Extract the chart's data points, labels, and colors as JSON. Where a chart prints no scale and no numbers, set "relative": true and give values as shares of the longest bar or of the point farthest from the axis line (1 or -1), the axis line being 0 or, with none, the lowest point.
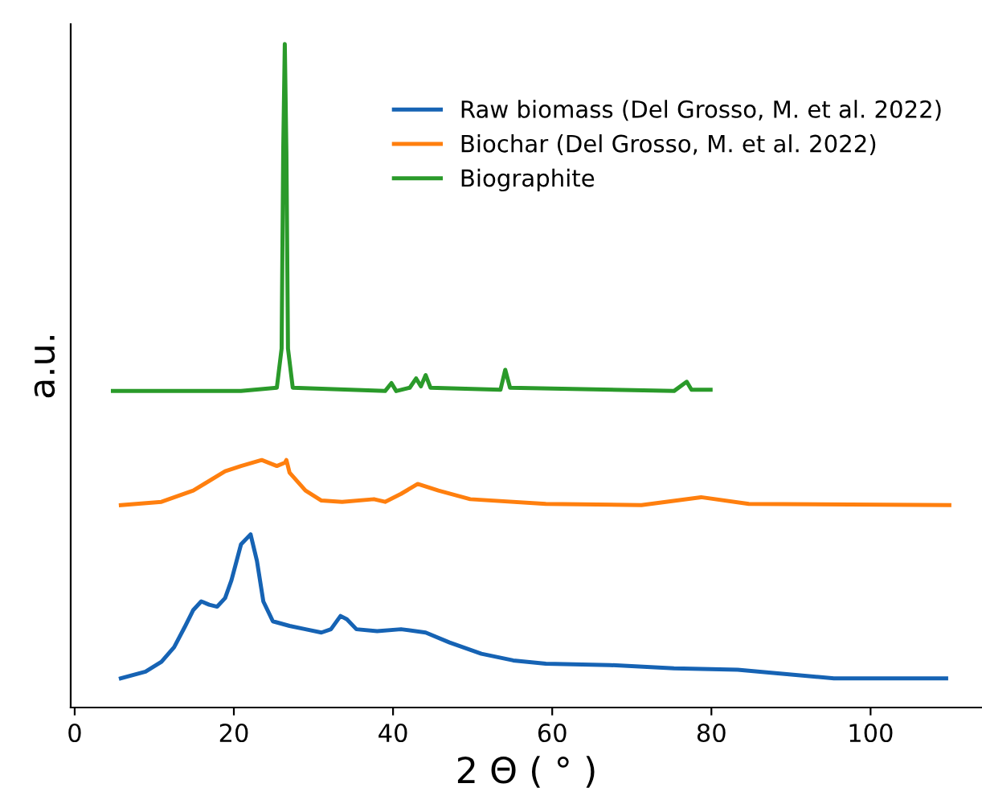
{
  "chart_data": {
    "type": "line",
    "relative": true,
    "xlabel": "2 Θ ( ° )",
    "ylabel": "a.u.",
    "xlim": [
      -0.5,
      114
    ],
    "xticks": [
      0,
      20,
      40,
      60,
      80,
      100
    ],
    "legend": "top right",
    "grid": false,
    "tick_labels": "x",
    "series": [
      {
        "name": "Raw biomass (Del Grosso, M. et al. 2022)",
        "color": "#1663b4",
        "x": [
          5.8,
          8.9,
          10.9,
          12.5,
          13.9,
          14.9,
          15.9,
          16.9,
          17.9,
          18.9,
          19.7,
          20.9,
          22.1,
          22.9,
          23.7,
          24.9,
          27.0,
          29.0,
          31.0,
          32.2,
          33.4,
          34.2,
          35.4,
          38.0,
          41.0,
          44.1,
          47.1,
          51.1,
          55.1,
          59.2,
          67.2,
          75.3,
          83.3,
          95.4,
          109.5
        ],
        "values": [
          0.044,
          0.054,
          0.069,
          0.091,
          0.123,
          0.147,
          0.16,
          0.155,
          0.152,
          0.165,
          0.192,
          0.246,
          0.261,
          0.221,
          0.16,
          0.13,
          0.123,
          0.118,
          0.113,
          0.118,
          0.138,
          0.133,
          0.118,
          0.115,
          0.118,
          0.113,
          0.098,
          0.081,
          0.071,
          0.066,
          0.064,
          0.059,
          0.057,
          0.044,
          0.044
        ]
      },
      {
        "name": "Biochar (Del Grosso, M. et al. 2022)",
        "color": "#ff7f0e",
        "x": [
          5.8,
          10.9,
          14.9,
          18.9,
          20.9,
          23.5,
          25.4,
          26.4,
          26.6,
          27.0,
          29.0,
          31.0,
          33.6,
          37.6,
          39.0,
          41.0,
          43.1,
          45.7,
          49.7,
          59.2,
          71.2,
          78.7,
          84.7,
          109.9
        ],
        "values": [
          0.305,
          0.31,
          0.327,
          0.356,
          0.364,
          0.373,
          0.364,
          0.369,
          0.373,
          0.354,
          0.327,
          0.312,
          0.31,
          0.314,
          0.31,
          0.322,
          0.337,
          0.327,
          0.314,
          0.307,
          0.305,
          0.317,
          0.307,
          0.305
        ]
      },
      {
        "name": "Biographite",
        "color": "#2a9a2a",
        "x": [
          4.8,
          20.9,
          25.4,
          26.0,
          26.2,
          26.4,
          26.6,
          26.8,
          27.4,
          39.0,
          39.8,
          40.4,
          42.1,
          42.9,
          43.5,
          44.1,
          44.7,
          53.5,
          54.1,
          54.7,
          75.3,
          76.9,
          77.5,
          79.9
        ],
        "values": [
          0.477,
          0.477,
          0.482,
          0.541,
          0.838,
          1.0,
          0.838,
          0.541,
          0.482,
          0.477,
          0.489,
          0.477,
          0.482,
          0.496,
          0.484,
          0.501,
          0.482,
          0.479,
          0.509,
          0.482,
          0.477,
          0.491,
          0.479,
          0.479
        ]
      }
    ]
  }
}
